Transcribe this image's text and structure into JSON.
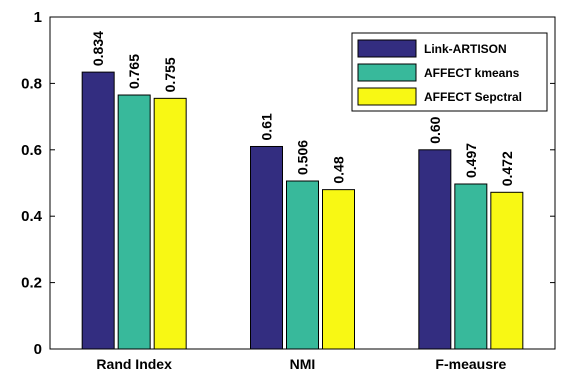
{
  "chart_data": {
    "type": "bar",
    "categories": [
      "Rand Index",
      "NMI",
      "F-meausre"
    ],
    "series": [
      {
        "name": "Link-ARTISON",
        "values": [
          0.834,
          0.61,
          0.6
        ],
        "labels": [
          "0.834",
          "0.61",
          "0.60"
        ],
        "color": "#332d80"
      },
      {
        "name": "AFFECT kmeans",
        "values": [
          0.765,
          0.506,
          0.497
        ],
        "labels": [
          "0.765",
          "0.506",
          "0.497"
        ],
        "color": "#38b99b"
      },
      {
        "name": "AFFECT Sepctral",
        "values": [
          0.755,
          0.48,
          0.472
        ],
        "labels": [
          "0.755",
          "0.48",
          "0.472"
        ],
        "color": "#f8f814"
      }
    ],
    "ylim": [
      0,
      1
    ],
    "yticks": [
      0,
      0.2,
      0.4,
      0.6,
      0.8,
      1
    ],
    "ytick_labels": [
      "0",
      "0.2",
      "0.4",
      "0.6",
      "0.8",
      "1"
    ],
    "legend_position": "top-right",
    "grid": false
  }
}
